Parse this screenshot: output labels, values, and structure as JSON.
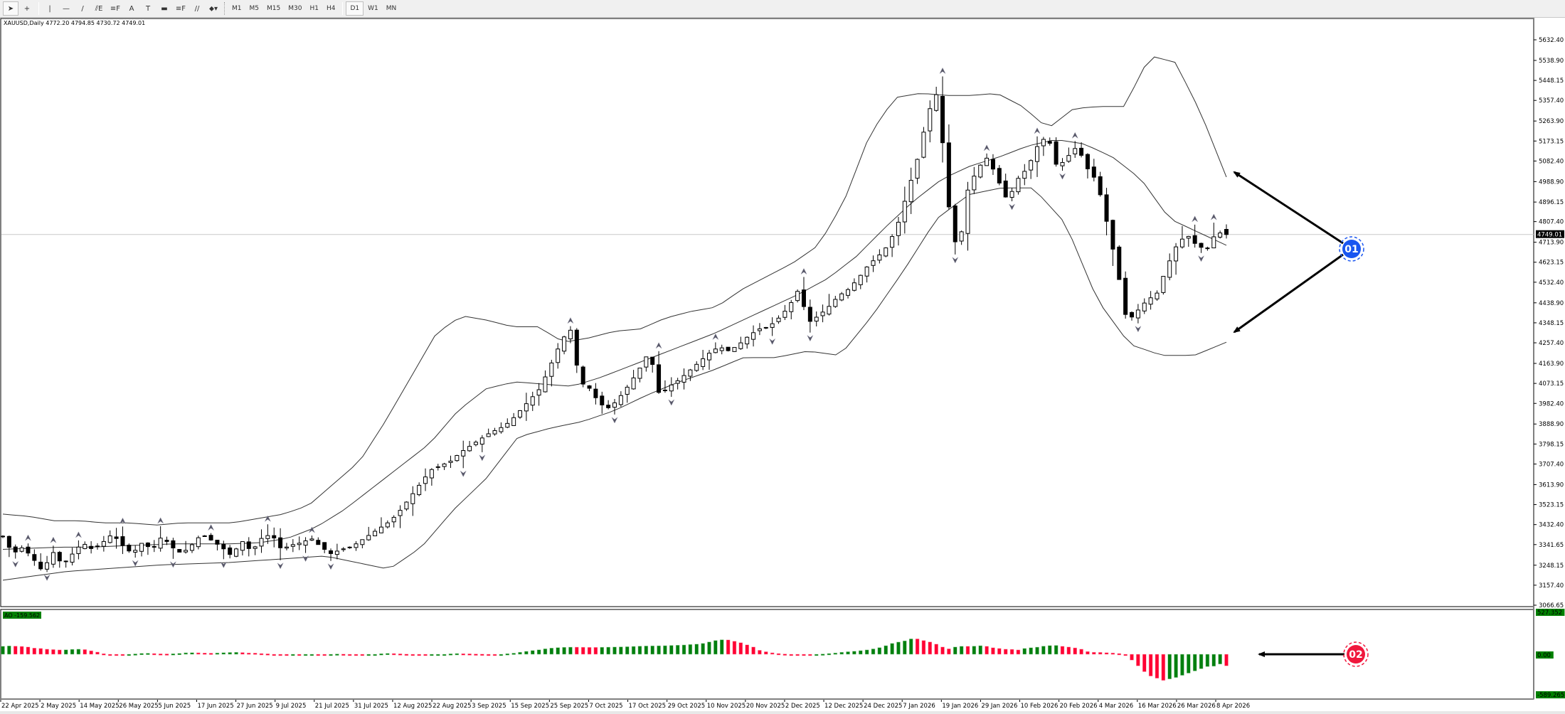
{
  "toolbar": {
    "tools": [
      {
        "name": "cursor",
        "glyph": "➤"
      },
      {
        "name": "crosshair",
        "glyph": "+"
      },
      {
        "name": "vertical-line",
        "glyph": "|"
      },
      {
        "name": "horizontal-line",
        "glyph": "—"
      },
      {
        "name": "trendline",
        "glyph": "/"
      },
      {
        "name": "fibo-expansion",
        "glyph": "⫽E"
      },
      {
        "name": "fibo-retracement",
        "glyph": "≡F"
      },
      {
        "name": "text",
        "glyph": "A"
      },
      {
        "name": "text-label",
        "glyph": "T"
      },
      {
        "name": "rectangle",
        "glyph": "▬"
      },
      {
        "name": "fibo-fan",
        "glyph": "≡F"
      },
      {
        "name": "channel",
        "glyph": "//"
      },
      {
        "name": "arrows-dropdown",
        "glyph": "⬥▾"
      }
    ],
    "timeframes": [
      "M1",
      "M5",
      "M15",
      "M30",
      "H1",
      "H4",
      "D1",
      "W1",
      "MN"
    ],
    "active_timeframe": "D1"
  },
  "chart": {
    "symbol_info": "XAUUSD,Daily  4772.20 4794.85 4730.72 4749.01",
    "current_price": "4749.01",
    "ao_label": "AO -159.562",
    "ao_axis": {
      "max": "527.352",
      "zero": "0.00",
      "min": "-589.265"
    }
  },
  "annotations": [
    {
      "id": "01",
      "label": "01",
      "color": "#1a56f0",
      "target": "bollinger-bands"
    },
    {
      "id": "02",
      "label": "02",
      "color": "#f0173c",
      "target": "awesome-oscillator"
    }
  ],
  "colors": {
    "bull_bar": "#007f0e",
    "bear_bar": "#ff0033",
    "badge_blue": "#1a56f0",
    "badge_red": "#f0173c",
    "current_price_bg": "#000000",
    "ao_label_bg": "#008000"
  },
  "chart_data": [
    {
      "type": "candlestick",
      "title": "XAUUSD,Daily",
      "ohlc_last": {
        "open": 4772.2,
        "high": 4794.85,
        "low": 4730.72,
        "close": 4749.01
      },
      "indicators": [
        "Bollinger Bands (upper/middle/lower)",
        "Fractals"
      ],
      "y_ticks": [
        "5632.40",
        "5538.90",
        "5448.15",
        "5357.40",
        "5263.90",
        "5173.15",
        "5082.40",
        "4988.90",
        "4896.15",
        "4807.40",
        "4713.90",
        "4623.15",
        "4532.40",
        "4438.90",
        "4348.15",
        "4257.40",
        "4163.90",
        "4073.15",
        "3982.40",
        "3888.90",
        "3798.15",
        "3707.40",
        "3613.90",
        "3523.15",
        "3432.40",
        "3341.65",
        "3248.15",
        "3157.40",
        "3066.65"
      ],
      "ylim": [
        3050,
        5680
      ],
      "x_ticks": [
        "22 Apr 2025",
        "2 May 2025",
        "14 May 2025",
        "26 May 2025",
        "5 Jun 2025",
        "17 Jun 2025",
        "27 Jun 2025",
        "9 Jul 2025",
        "21 Jul 2025",
        "31 Jul 2025",
        "12 Aug 2025",
        "22 Aug 2025",
        "3 Sep 2025",
        "15 Sep 2025",
        "25 Sep 2025",
        "7 Oct 2025",
        "17 Oct 2025",
        "29 Oct 2025",
        "10 Nov 2025",
        "20 Nov 2025",
        "2 Dec 2025",
        "12 Dec 2025",
        "24 Dec 2025",
        "7 Jan 2026",
        "19 Jan 2026",
        "29 Jan 2026",
        "10 Feb 2026",
        "20 Feb 2026",
        "4 Mar 2026",
        "16 Mar 2026",
        "26 Mar 2026",
        "8 Apr 2026"
      ],
      "close_path": [
        3380,
        3300,
        3330,
        3280,
        3220,
        3310,
        3250,
        3300,
        3350,
        3320,
        3350,
        3390,
        3340,
        3300,
        3350,
        3320,
        3380,
        3330,
        3300,
        3340,
        3390,
        3360,
        3330,
        3290,
        3360,
        3310,
        3370,
        3390,
        3320,
        3340,
        3350,
        3370,
        3330,
        3300,
        3320,
        3330,
        3360,
        3390,
        3420,
        3450,
        3500,
        3560,
        3620,
        3680,
        3700,
        3720,
        3760,
        3790,
        3820,
        3850,
        3870,
        3900,
        3950,
        4000,
        4050,
        4150,
        4250,
        4330,
        4080,
        4050,
        3980,
        3960,
        4010,
        4070,
        4140,
        4220,
        4020,
        4060,
        4090,
        4130,
        4170,
        4210,
        4240,
        4220,
        4250,
        4290,
        4320,
        4330,
        4370,
        4420,
        4500,
        4350,
        4380,
        4420,
        4470,
        4500,
        4550,
        4610,
        4650,
        4700,
        4800,
        4950,
        5100,
        5300,
        5400,
        4900,
        4650,
        4950,
        5050,
        5100,
        5000,
        4900,
        5000,
        5050,
        5150,
        5200,
        5050,
        5100,
        5150,
        5050,
        4990,
        4800,
        4600,
        4350,
        4400,
        4450,
        4480,
        4600,
        4700,
        4750,
        4700,
        4680,
        4760,
        4749
      ],
      "upper_band": [
        3480,
        3470,
        3450,
        3450,
        3440,
        3440,
        3430,
        3440,
        3440,
        3440,
        3460,
        3480,
        3520,
        3620,
        3720,
        3900,
        4100,
        4300,
        4380,
        4360,
        4330,
        4330,
        4260,
        4280,
        4310,
        4320,
        4370,
        4400,
        4420,
        4500,
        4560,
        4620,
        4700,
        4900,
        5200,
        5370,
        5390,
        5380,
        5380,
        5390,
        5330,
        5230,
        5320,
        5330,
        5330,
        5560,
        5530,
        5300,
        5010
      ],
      "middle_band": [
        3320,
        3325,
        3330,
        3330,
        3335,
        3340,
        3345,
        3345,
        3345,
        3350,
        3370,
        3420,
        3500,
        3600,
        3700,
        3800,
        3950,
        4050,
        4080,
        4070,
        4060,
        4100,
        4150,
        4200,
        4250,
        4300,
        4360,
        4420,
        4480,
        4550,
        4650,
        4780,
        4900,
        5000,
        5060,
        5100,
        5150,
        5180,
        5160,
        5100,
        5000,
        4820,
        4760,
        4700
      ],
      "lower_band": [
        3180,
        3200,
        3220,
        3230,
        3240,
        3250,
        3255,
        3260,
        3270,
        3280,
        3290,
        3260,
        3230,
        3330,
        3500,
        3640,
        3830,
        3870,
        3900,
        3950,
        4020,
        4080,
        4130,
        4190,
        4190,
        4220,
        4200,
        4380,
        4590,
        4820,
        4930,
        4960,
        4960,
        4800,
        4450,
        4250,
        4200,
        4200,
        4260
      ]
    },
    {
      "type": "bar",
      "title": "AO -159.562",
      "indicator": "Awesome Oscillator",
      "ylim": [
        -589.265,
        527.352
      ],
      "bull_color": "#007f0e",
      "bear_color": "#ff0033",
      "values": [
        110,
        115,
        112,
        108,
        100,
        85,
        80,
        70,
        65,
        60,
        62,
        68,
        70,
        65,
        48,
        30,
        8,
        -5,
        -8,
        -10,
        -5,
        5,
        12,
        14,
        10,
        6,
        5,
        7,
        12,
        20,
        22,
        20,
        17,
        15,
        18,
        22,
        25,
        27,
        24,
        18,
        16,
        10,
        6,
        -4,
        -5,
        -6,
        -4,
        -5,
        -3,
        -2,
        -3,
        -4,
        -2,
        4,
        2,
        -3,
        -5,
        -6,
        -4,
        -2,
        8,
        12,
        10,
        6,
        2,
        -2,
        -8,
        -10,
        -7,
        -4,
        -2,
        6,
        10,
        8,
        6,
        4,
        2,
        -3,
        -5,
        -3,
        8,
        15,
        28,
        40,
        52,
        62,
        75,
        85,
        92,
        96,
        98,
        98,
        97,
        95,
        95,
        97,
        98,
        100,
        102,
        104,
        108,
        112,
        114,
        116,
        117,
        118,
        122,
        125,
        128,
        135,
        140,
        150,
        170,
        190,
        200,
        198,
        180,
        160,
        130,
        100,
        55,
        35,
        20,
        10,
        4,
        0,
        -4,
        -6,
        -8,
        -4,
        4,
        10,
        18,
        28,
        35,
        42,
        50,
        60,
        74,
        92,
        118,
        150,
        168,
        185,
        212,
        212,
        190,
        170,
        140,
        100,
        75,
        100,
        110,
        110,
        112,
        118,
        110,
        90,
        80,
        70,
        68,
        60,
        80,
        90,
        98,
        112,
        120,
        122,
        110,
        100,
        88,
        70,
        38,
        28,
        26,
        22,
        18,
        10,
        -10,
        -80,
        -160,
        -240,
        -300,
        -330,
        -360,
        -340,
        -320,
        -290,
        -260,
        -230,
        -200,
        -170,
        -165,
        -135,
        -159.562
      ]
    }
  ]
}
